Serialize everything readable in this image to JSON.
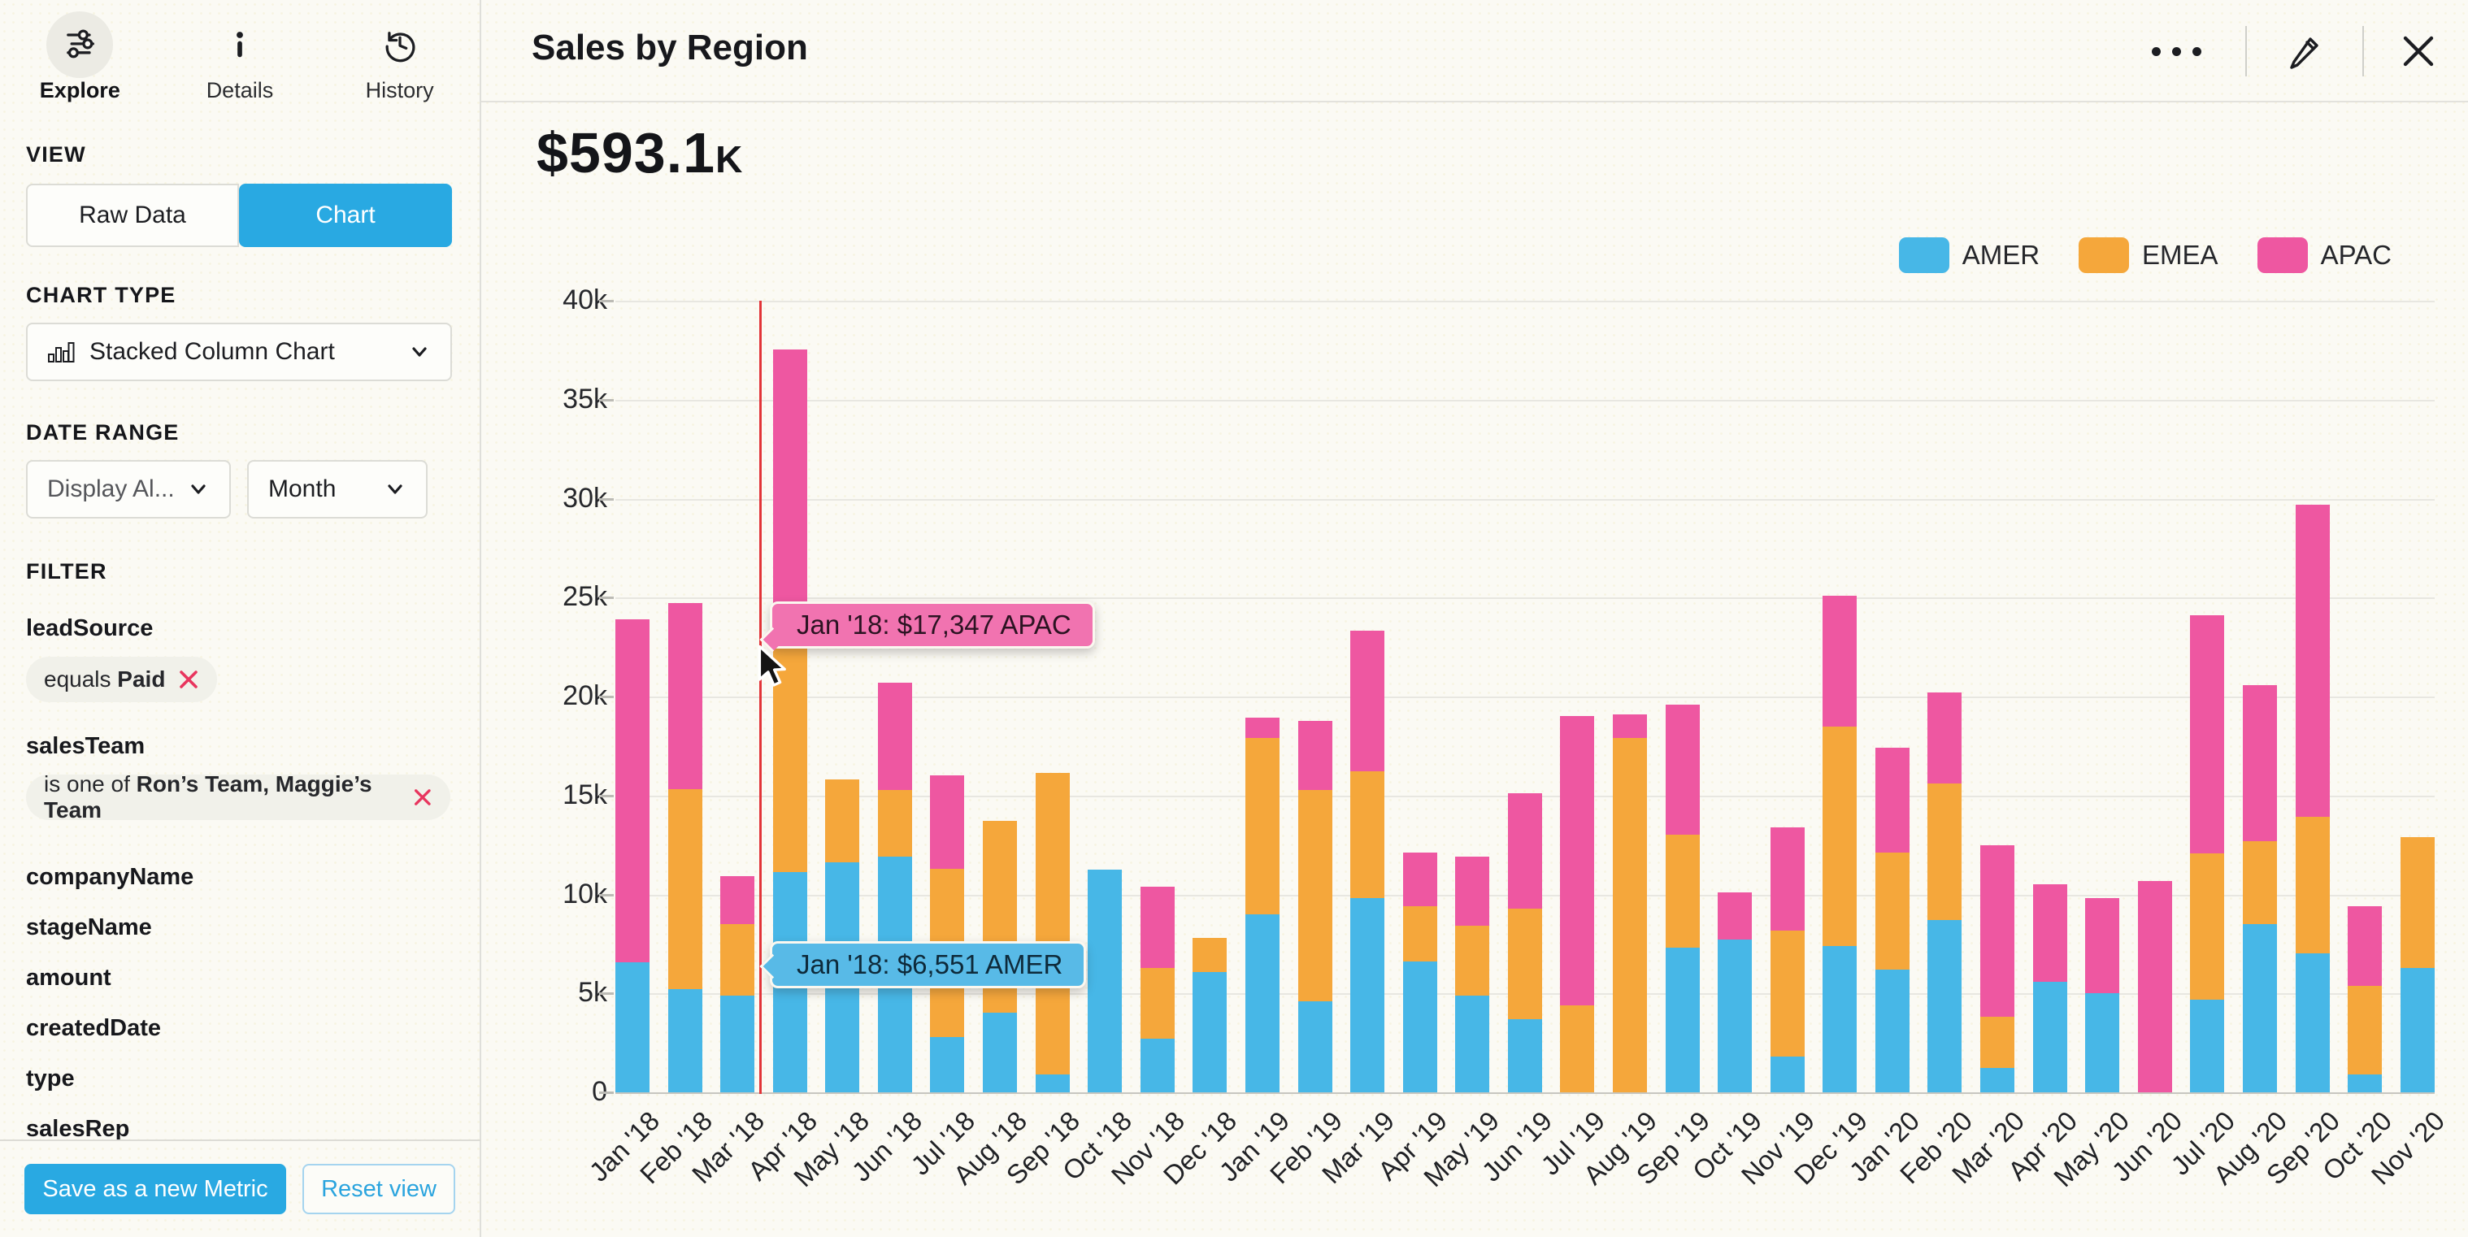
{
  "sidebar": {
    "tabs": [
      {
        "label": "Explore",
        "icon": "sliders-icon",
        "active": true
      },
      {
        "label": "Details",
        "icon": "info-icon",
        "active": false
      },
      {
        "label": "History",
        "icon": "history-icon",
        "active": false
      }
    ],
    "view": {
      "label": "VIEW",
      "raw_data_label": "Raw Data",
      "chart_label": "Chart",
      "selected": "Chart"
    },
    "chart_type": {
      "label": "CHART TYPE",
      "value": "Stacked Column Chart"
    },
    "date_range": {
      "label": "DATE RANGE",
      "display_value": "Display Al...",
      "granularity_value": "Month"
    },
    "filter": {
      "label": "FILTER",
      "applied": [
        {
          "field": "leadSource",
          "operator": "equals",
          "value": "Paid"
        },
        {
          "field": "salesTeam",
          "operator": "is one of",
          "value": "Ron’s Team, Maggie’s Team"
        }
      ],
      "available_fields": [
        "companyName",
        "stageName",
        "amount",
        "createdDate",
        "type",
        "salesRep"
      ]
    },
    "actions": {
      "save_label": "Save as a new Metric",
      "reset_label": "Reset view"
    }
  },
  "header": {
    "title": "Sales by Region",
    "icons": [
      "more-icon",
      "edit-icon",
      "close-icon"
    ]
  },
  "summary": {
    "value": "$593.1",
    "suffix": "K",
    "full_text": "$593.1K"
  },
  "tooltips": [
    {
      "text": "Jan '18: $17,347 APAC",
      "series": "APAC",
      "color": "#f173b0"
    },
    {
      "text": "Jan '18: $6,551 AMER",
      "series": "AMER",
      "color": "#58bae7"
    }
  ],
  "chart_data": {
    "type": "bar",
    "stacked": true,
    "title": "Sales by Region",
    "total_label": "$593.1K",
    "hovered_category": "Jan '18",
    "legend_position": "top-right",
    "grid": true,
    "ylim": [
      0,
      40000
    ],
    "yticks": [
      "40k",
      "35k",
      "30k",
      "25k",
      "20k",
      "15k",
      "10k",
      "5k",
      "0"
    ],
    "categories": [
      "Jan '18",
      "Feb '18",
      "Mar '18",
      "Apr '18",
      "May '18",
      "Jun '18",
      "Jul '18",
      "Aug '18",
      "Sep '18",
      "Oct '18",
      "Nov '18",
      "Dec '18",
      "Jan '19",
      "Feb '19",
      "Mar '19",
      "Apr '19",
      "May '19",
      "Jun '19",
      "Jul '19",
      "Aug '19",
      "Sep '19",
      "Oct '19",
      "Nov '19",
      "Dec '19",
      "Jan '20",
      "Feb '20",
      "Mar '20",
      "Apr '20",
      "May '20",
      "Jun '20",
      "Jul '20",
      "Aug '20",
      "Sep '20",
      "Oct '20",
      "Nov '20"
    ],
    "series": [
      {
        "name": "AMER",
        "color": "#47b7e7",
        "values": [
          6551,
          5214,
          4890,
          11142,
          11630,
          11917,
          2811,
          4032,
          905,
          11248,
          2692,
          6088,
          9012,
          4588,
          9811,
          6615,
          4905,
          3702,
          0,
          0,
          7314,
          7702,
          1805,
          7401,
          6199,
          8703,
          1213,
          5588,
          5012,
          0,
          4699,
          8490,
          7013,
          903,
          6288
        ]
      },
      {
        "name": "EMEA",
        "color": "#f5a73b",
        "values": [
          0,
          10088,
          3617,
          11705,
          4187,
          3344,
          8467,
          9691,
          15234,
          0,
          3582,
          1702,
          8894,
          10694,
          6420,
          2783,
          3512,
          5591,
          4380,
          17891,
          5702,
          0,
          6388,
          11082,
          5905,
          6892,
          2588,
          0,
          0,
          0,
          7392,
          4183,
          6894,
          4489,
          6603
        ]
      },
      {
        "name": "APAC",
        "color": "#ee57a1",
        "values": [
          17347,
          9432,
          2401,
          14689,
          0,
          5420,
          4733,
          0,
          0,
          0,
          4121,
          0,
          1023,
          3501,
          7102,
          2705,
          3488,
          5803,
          14622,
          1204,
          6590,
          2410,
          5190,
          6603,
          5310,
          4601,
          8690,
          4911,
          4789,
          10688,
          12010,
          7922,
          15801,
          4011,
          0
        ]
      }
    ]
  }
}
